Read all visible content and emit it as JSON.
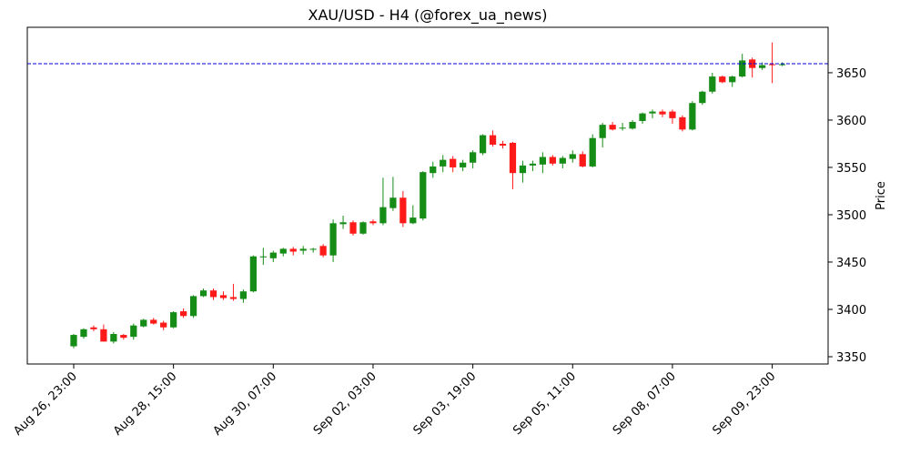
{
  "chart_data": {
    "type": "candlestick",
    "title": "XAU/USD - H4 (@forex_ua_news)",
    "y_label": "Price",
    "categories": [
      "Aug 26, 23:00",
      null,
      null,
      null,
      null,
      null,
      null,
      null,
      null,
      null,
      "Aug 28, 15:00",
      null,
      null,
      null,
      null,
      null,
      null,
      null,
      null,
      null,
      "Aug 30, 07:00",
      null,
      null,
      null,
      null,
      null,
      null,
      null,
      null,
      null,
      "Sep 02, 03:00",
      null,
      null,
      null,
      null,
      null,
      null,
      null,
      null,
      null,
      "Sep 03, 19:00",
      null,
      null,
      null,
      null,
      null,
      null,
      null,
      null,
      null,
      "Sep 05, 11:00",
      null,
      null,
      null,
      null,
      null,
      null,
      null,
      null,
      null,
      "Sep 08, 07:00",
      null,
      null,
      null,
      null,
      null,
      null,
      null,
      null,
      null,
      "Sep 09, 23:00",
      null
    ],
    "open": [
      3361,
      3371,
      3381,
      3379,
      3366,
      3373,
      3371,
      3382,
      3389,
      3386,
      3381,
      3398,
      3393,
      3414,
      3420,
      3415,
      3413,
      3411,
      3419,
      3455,
      3454,
      3459,
      3464,
      3462,
      3463,
      3467,
      3457,
      3490,
      3492,
      3480,
      3493,
      3491,
      3507,
      3518,
      3491,
      3496,
      3544,
      3551,
      3559,
      3550,
      3555,
      3565,
      3584,
      3575,
      3576,
      3544,
      3552,
      3553,
      3561,
      3554,
      3559,
      3564,
      3551,
      3581,
      3595,
      3591,
      3591,
      3599,
      3607,
      3609,
      3609,
      3603,
      3590,
      3618,
      3630,
      3646,
      3640,
      3646,
      3664,
      3655,
      3659,
      3658
    ],
    "high": [
      3374,
      3380,
      3383,
      3384,
      3376,
      3374,
      3385,
      3390,
      3391,
      3388,
      3398,
      3401,
      3415,
      3422,
      3422,
      3419,
      3427,
      3421,
      3457,
      3465,
      3462,
      3465,
      3466,
      3467,
      3465,
      3469,
      3495,
      3499,
      3494,
      3493,
      3495,
      3539,
      3540,
      3525,
      3510,
      3546,
      3556,
      3563,
      3562,
      3558,
      3568,
      3585,
      3589,
      3578,
      3577,
      3557,
      3557,
      3566,
      3563,
      3562,
      3568,
      3567,
      3585,
      3597,
      3598,
      3597,
      3600,
      3608,
      3611,
      3611,
      3611,
      3605,
      3620,
      3631,
      3650,
      3647,
      3647,
      3670,
      3666,
      3661,
      3682,
      3661
    ],
    "low": [
      3359,
      3369,
      3377,
      3366,
      3364,
      3368,
      3368,
      3381,
      3384,
      3378,
      3380,
      3391,
      3391,
      3413,
      3410,
      3410,
      3409,
      3407,
      3418,
      3447,
      3450,
      3456,
      3457,
      3458,
      3460,
      3455,
      3450,
      3485,
      3478,
      3479,
      3489,
      3489,
      3504,
      3487,
      3490,
      3494,
      3539,
      3545,
      3545,
      3546,
      3549,
      3563,
      3572,
      3570,
      3527,
      3534,
      3546,
      3544,
      3552,
      3549,
      3555,
      3550,
      3550,
      3571,
      3589,
      3589,
      3590,
      3596,
      3602,
      3603,
      3596,
      3588,
      3589,
      3616,
      3628,
      3639,
      3635,
      3645,
      3645,
      3653,
      3639,
      3657
    ],
    "close": [
      3373,
      3379,
      3379,
      3366,
      3374,
      3370,
      3383,
      3389,
      3385,
      3381,
      3397,
      3393,
      3414,
      3420,
      3413,
      3412,
      3411,
      3419,
      3456,
      3456,
      3460,
      3464,
      3461,
      3464,
      3464,
      3457,
      3491,
      3492,
      3480,
      3492,
      3491,
      3508,
      3518,
      3491,
      3497,
      3545,
      3551,
      3558,
      3550,
      3555,
      3566,
      3584,
      3574,
      3573,
      3544,
      3552,
      3554,
      3561,
      3554,
      3560,
      3564,
      3551,
      3581,
      3595,
      3590,
      3592,
      3598,
      3607,
      3609,
      3606,
      3602,
      3590,
      3618,
      3630,
      3646,
      3640,
      3646,
      3663,
      3655,
      3658,
      3658,
      3659
    ],
    "up_color": "#158c15",
    "down_color": "#ff1a1a",
    "hline": {
      "value": 3659.6,
      "color": "#0000dd"
    },
    "xlim": [
      -4.65,
      75.6
    ],
    "ylim": [
      3342.3,
      3698
    ],
    "yticks": [
      3350,
      3400,
      3450,
      3500,
      3550,
      3600,
      3650
    ]
  }
}
